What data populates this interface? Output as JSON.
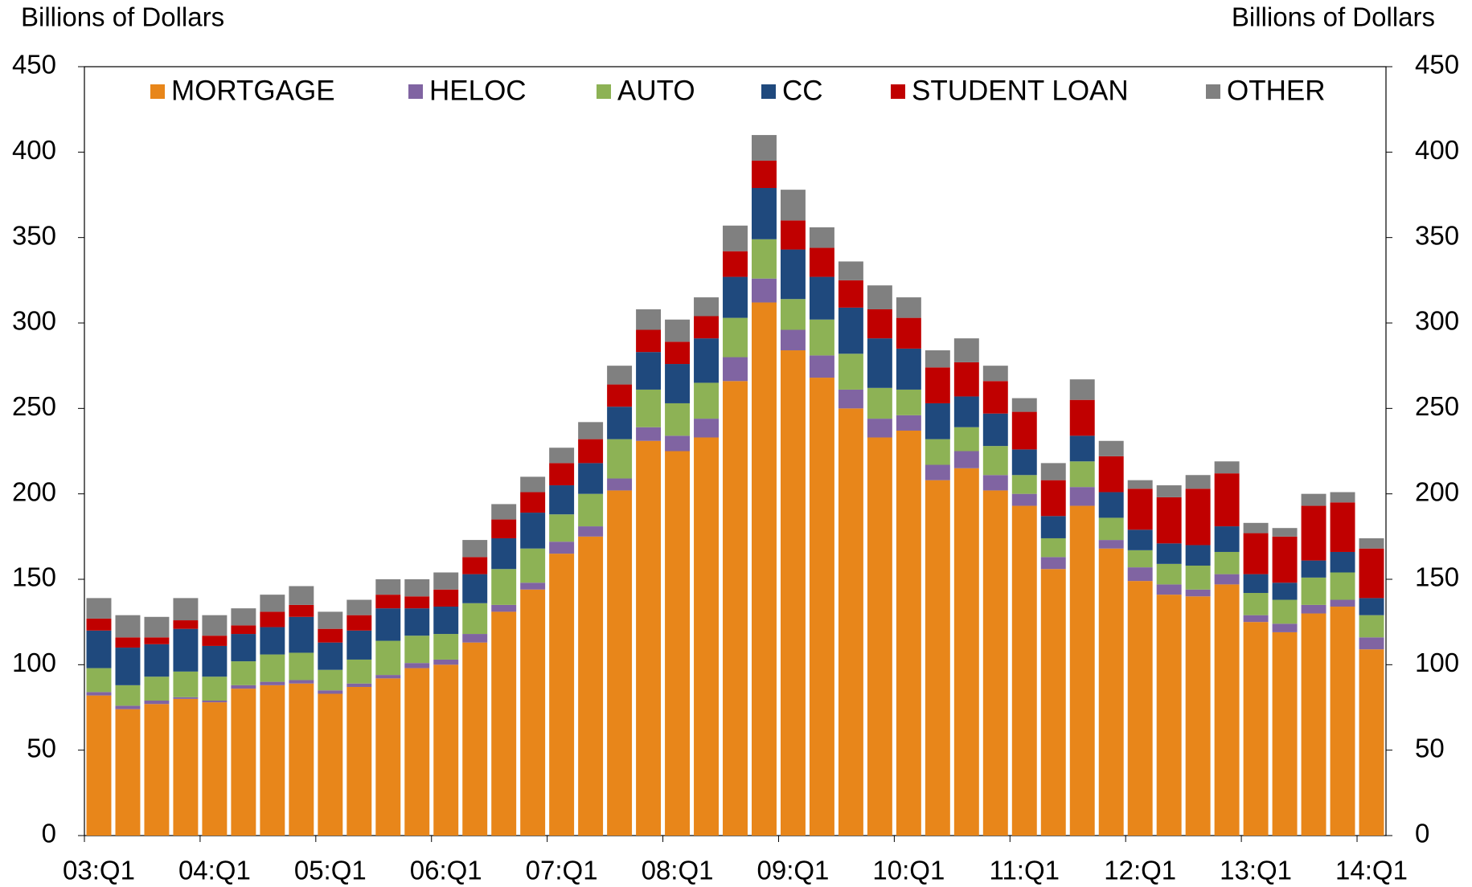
{
  "chart_data": {
    "type": "stacked_bar",
    "y_label_left": "Billions of Dollars",
    "y_label_right": "Billions of Dollars",
    "categories": [
      "03:Q1",
      null,
      null,
      null,
      "04:Q1",
      null,
      null,
      null,
      "05:Q1",
      null,
      null,
      null,
      "06:Q1",
      null,
      null,
      null,
      "07:Q1",
      null,
      null,
      null,
      "08:Q1",
      null,
      null,
      null,
      "09:Q1",
      null,
      null,
      null,
      "10:Q1",
      null,
      null,
      null,
      "11:Q1",
      null,
      null,
      null,
      "12:Q1",
      null,
      null,
      null,
      "13:Q1",
      null,
      null,
      null,
      "14:Q1"
    ],
    "series": [
      {
        "name": "MORTGAGE",
        "color": "#e8861a",
        "values": [
          82,
          74,
          77,
          80,
          78,
          86,
          88,
          89,
          83,
          87,
          92,
          98,
          100,
          113,
          131,
          144,
          165,
          175,
          202,
          231,
          225,
          233,
          266,
          312,
          284,
          268,
          250,
          233,
          237,
          208,
          215,
          202,
          193,
          156,
          193,
          168,
          149,
          141,
          140,
          147,
          125,
          119,
          130,
          134,
          109
        ]
      },
      {
        "name": "HELOC",
        "color": "#8064a2",
        "values": [
          2,
          2,
          2,
          1,
          1,
          2,
          2,
          2,
          2,
          2,
          2,
          3,
          3,
          5,
          4,
          4,
          7,
          6,
          7,
          8,
          9,
          11,
          14,
          14,
          12,
          13,
          11,
          11,
          9,
          9,
          10,
          9,
          7,
          7,
          11,
          5,
          8,
          6,
          4,
          6,
          4,
          5,
          5,
          4,
          7
        ]
      },
      {
        "name": "AUTO",
        "color": "#8db255",
        "values": [
          14,
          12,
          14,
          15,
          14,
          14,
          16,
          16,
          12,
          14,
          20,
          16,
          15,
          18,
          21,
          20,
          16,
          19,
          23,
          22,
          19,
          21,
          23,
          23,
          18,
          21,
          21,
          18,
          15,
          15,
          14,
          17,
          11,
          11,
          15,
          13,
          10,
          12,
          14,
          13,
          13,
          14,
          16,
          16,
          13
        ]
      },
      {
        "name": "CC",
        "color": "#1f497d",
        "values": [
          22,
          22,
          19,
          25,
          18,
          16,
          16,
          21,
          16,
          17,
          19,
          16,
          16,
          17,
          18,
          21,
          17,
          18,
          19,
          22,
          23,
          26,
          24,
          30,
          29,
          25,
          27,
          29,
          24,
          21,
          18,
          19,
          15,
          13,
          15,
          15,
          12,
          12,
          12,
          15,
          11,
          10,
          10,
          12,
          10
        ]
      },
      {
        "name": "STUDENT LOAN",
        "color": "#c00000",
        "values": [
          7,
          6,
          4,
          5,
          6,
          5,
          9,
          7,
          8,
          9,
          8,
          7,
          10,
          10,
          11,
          12,
          13,
          14,
          13,
          13,
          13,
          13,
          15,
          16,
          17,
          17,
          16,
          17,
          18,
          21,
          20,
          19,
          22,
          21,
          21,
          21,
          24,
          27,
          33,
          31,
          24,
          27,
          32,
          29,
          29
        ]
      },
      {
        "name": "OTHER",
        "color": "#808080",
        "values": [
          12,
          13,
          12,
          13,
          12,
          10,
          10,
          11,
          10,
          9,
          9,
          10,
          10,
          10,
          9,
          9,
          9,
          10,
          11,
          12,
          13,
          11,
          15,
          15,
          18,
          12,
          11,
          14,
          12,
          10,
          14,
          9,
          8,
          10,
          12,
          9,
          5,
          7,
          8,
          7,
          6,
          5,
          7,
          6,
          6
        ]
      }
    ],
    "ylim": [
      0,
      450
    ],
    "yticks": [
      0,
      50,
      100,
      150,
      200,
      250,
      300,
      350,
      400,
      450
    ],
    "grid": false
  }
}
